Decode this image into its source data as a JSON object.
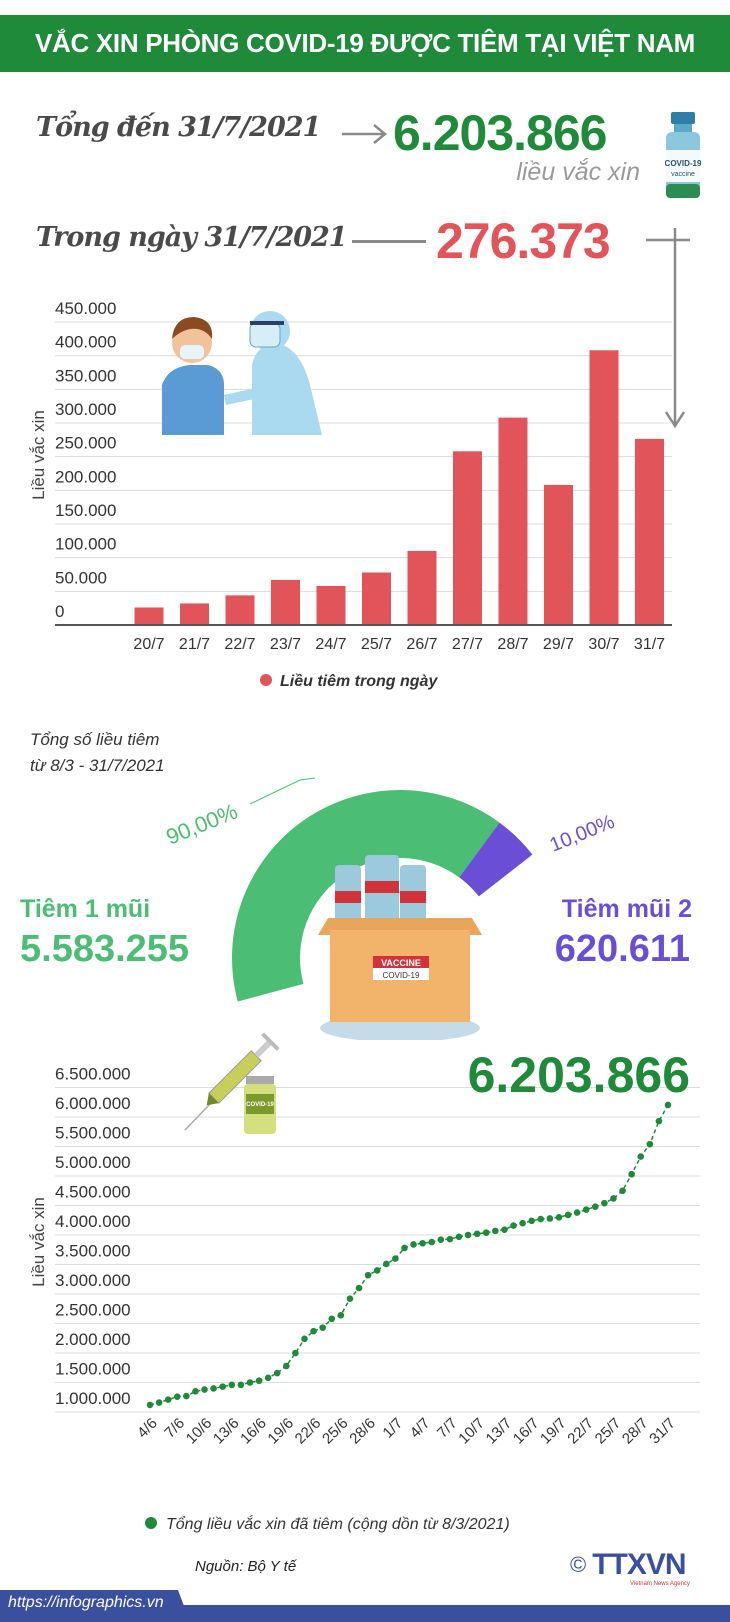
{
  "header": {
    "title": "VẮC XIN PHÒNG COVID-19 ĐƯỢC TIÊM TẠI VIỆT NAM"
  },
  "summary": {
    "total_label": "Tổng đến 31/7/2021",
    "total_value": "6.203.866",
    "total_unit": "liều vắc xin",
    "day_label": "Trong ngày 31/7/2021",
    "day_value": "276.373",
    "vial_text": "COVID-19 vaccine"
  },
  "colors": {
    "green": "#1e8a3a",
    "bar_red": "#e0545a",
    "light_green": "#4cbd74",
    "purple": "#6a4fd6",
    "footer_blue": "#3b4f9f"
  },
  "chart_data": [
    {
      "type": "bar",
      "ylabel": "Liều vắc xin",
      "categories": [
        "20/7",
        "21/7",
        "22/7",
        "23/7",
        "24/7",
        "25/7",
        "26/7",
        "27/7",
        "28/7",
        "29/7",
        "30/7",
        "31/7"
      ],
      "values": [
        26000,
        32000,
        44000,
        67000,
        58000,
        78000,
        110000,
        258000,
        308000,
        208000,
        408000,
        276373
      ],
      "yticks": [
        "0",
        "50.000",
        "100.000",
        "150.000",
        "200.000",
        "250.000",
        "300.000",
        "350.000",
        "400.000",
        "450.000"
      ],
      "ylim": [
        0,
        450000
      ],
      "grid": true,
      "legend": {
        "label": "Liều tiêm trong ngày",
        "placement": "bottom"
      },
      "color": "#e0545a"
    },
    {
      "type": "pie",
      "subtype": "semi-donut",
      "title_line1": "Tổng số liều tiêm",
      "title_line2": "từ 8/3 - 31/7/2021",
      "slices": [
        {
          "name": "Tiêm 1 mũi",
          "value": 5583255,
          "value_label": "5.583.255",
          "percent": 90,
          "percent_label": "90,00%",
          "color": "#4cbd74"
        },
        {
          "name": "Tiêm mũi 2",
          "value": 620611,
          "value_label": "620.611",
          "percent": 10,
          "percent_label": "10,00%",
          "color": "#6a4fd6"
        }
      ],
      "box_text": [
        "VACCINE",
        "COVID-19"
      ]
    },
    {
      "type": "line",
      "ylabel": "Liều vắc xin",
      "x": [
        "4/6",
        "5/6",
        "6/6",
        "7/6",
        "8/6",
        "9/6",
        "10/6",
        "11/6",
        "12/6",
        "13/6",
        "14/6",
        "15/6",
        "16/6",
        "17/6",
        "18/6",
        "19/6",
        "20/6",
        "21/6",
        "22/6",
        "23/6",
        "24/6",
        "25/6",
        "26/6",
        "27/6",
        "28/6",
        "29/6",
        "30/6",
        "1/7",
        "2/7",
        "3/7",
        "4/7",
        "5/7",
        "6/7",
        "7/7",
        "8/7",
        "9/7",
        "10/7",
        "11/7",
        "12/7",
        "13/7",
        "14/7",
        "15/7",
        "16/7",
        "17/7",
        "18/7",
        "19/7",
        "20/7",
        "21/7",
        "22/7",
        "23/7",
        "24/7",
        "25/7",
        "26/7",
        "27/7",
        "28/7",
        "29/7",
        "30/7",
        "31/7"
      ],
      "values": [
        1120000,
        1160000,
        1210000,
        1260000,
        1270000,
        1350000,
        1380000,
        1400000,
        1430000,
        1460000,
        1460000,
        1500000,
        1530000,
        1580000,
        1660000,
        1780000,
        2000000,
        2240000,
        2370000,
        2430000,
        2580000,
        2640000,
        2920000,
        3100000,
        3320000,
        3400000,
        3510000,
        3600000,
        3780000,
        3840000,
        3860000,
        3880000,
        3920000,
        3930000,
        3970000,
        4000000,
        4020000,
        4040000,
        4070000,
        4090000,
        4160000,
        4200000,
        4240000,
        4270000,
        4280000,
        4300000,
        4340000,
        4380000,
        4430000,
        4480000,
        4540000,
        4620000,
        4750000,
        5030000,
        5330000,
        5540000,
        5930000,
        6203866
      ],
      "xticks": [
        "4/6",
        "7/6",
        "10/6",
        "13/6",
        "16/6",
        "19/6",
        "22/6",
        "25/6",
        "28/6",
        "1/7",
        "4/7",
        "7/7",
        "10/7",
        "13/7",
        "16/7",
        "19/7",
        "22/7",
        "25/7",
        "28/7",
        "31/7"
      ],
      "yticks": [
        "1.000.000",
        "1.500.000",
        "2.000.000",
        "2.500.000",
        "3.000.000",
        "3.500.000",
        "4.000.000",
        "4.500.000",
        "5.000.000",
        "5.500.000",
        "6.000.000",
        "6.500.000"
      ],
      "ylim": [
        1000000,
        6500000
      ],
      "grid": true,
      "annotation": "6.203.866",
      "legend": {
        "label": "Tổng liều vắc xin đã tiêm (cộng dồn từ 8/3/2021)",
        "placement": "bottom"
      },
      "color": "#1e8a3a",
      "vial_text": "COVID-19 VACCINE"
    }
  ],
  "footer": {
    "source": "Nguồn: Bộ Y tế",
    "url": "https://infographics.vn",
    "logo": "TTXVN",
    "logo_sub": "Vietnam News Agency",
    "copyright": "©"
  }
}
